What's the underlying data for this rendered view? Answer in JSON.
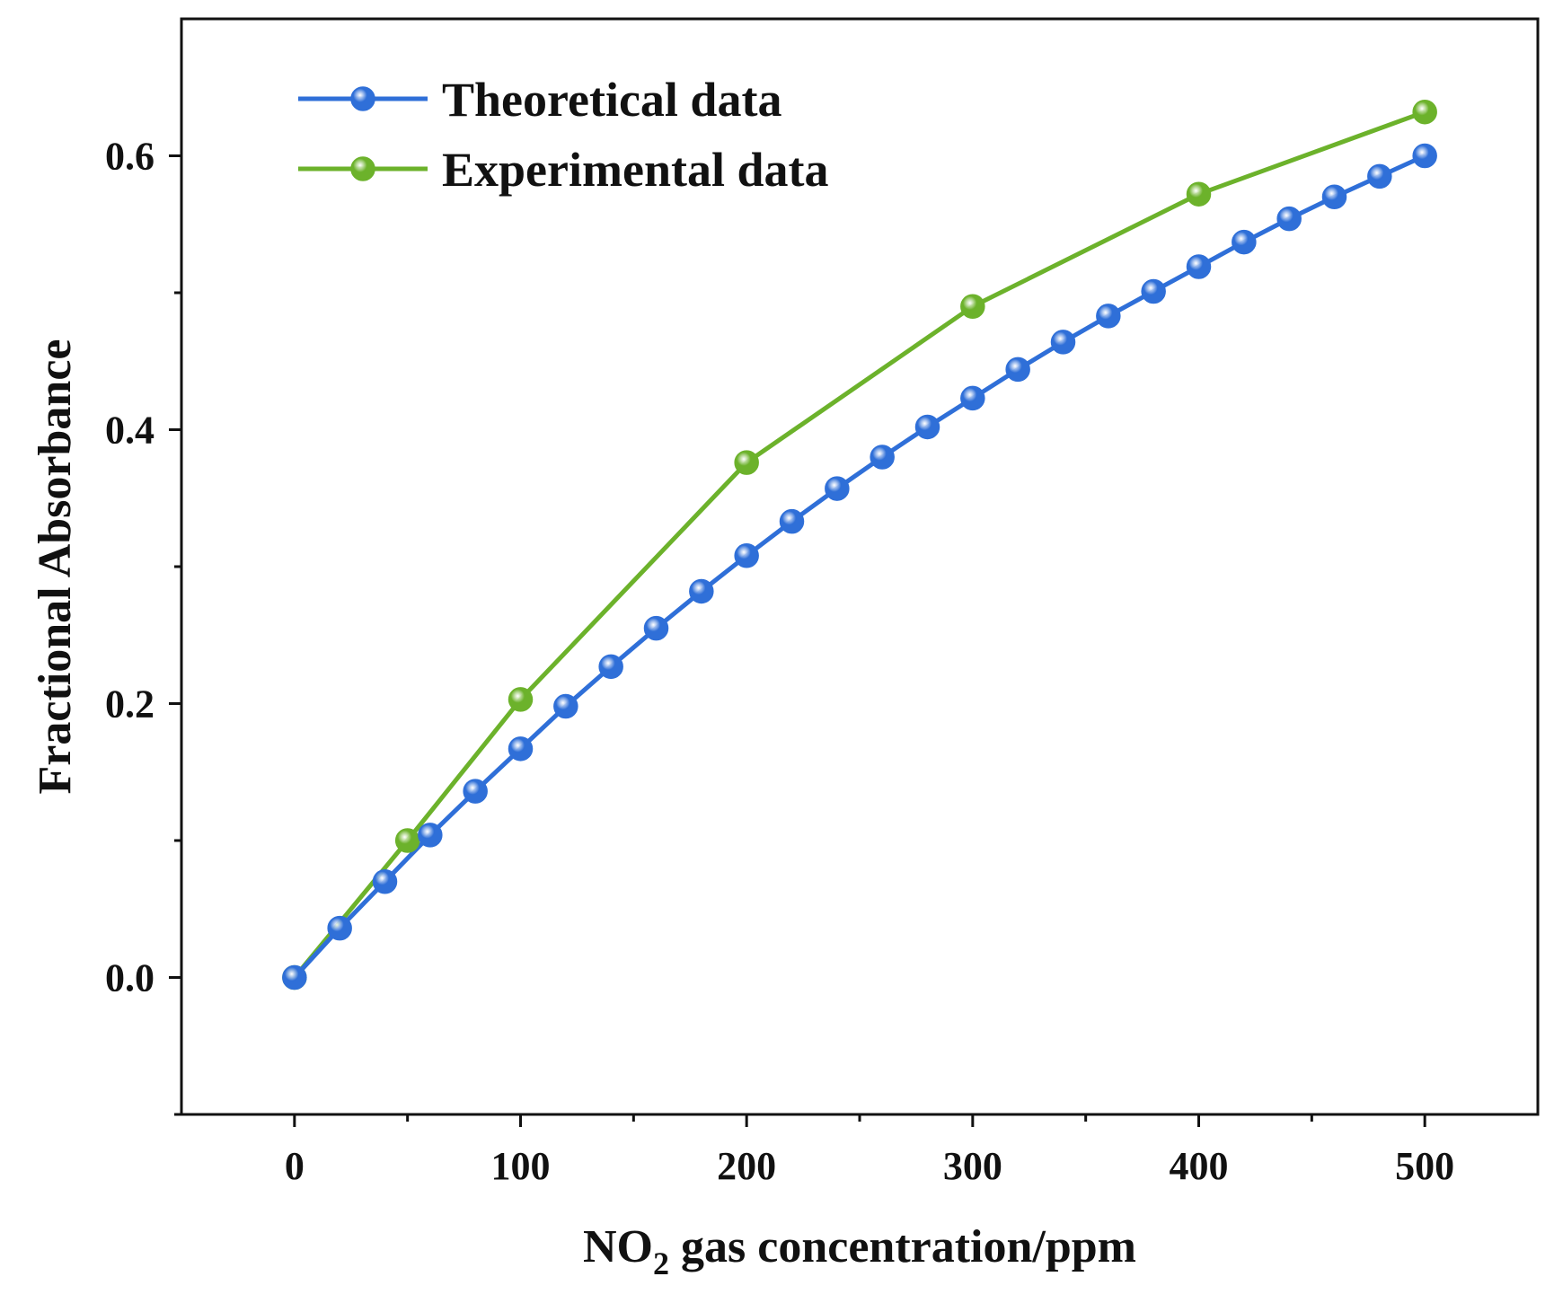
{
  "chart_data": {
    "type": "line",
    "title": "",
    "xlabel": {
      "main": "NO",
      "subscript": "2",
      "rest": " gas concentration/ppm"
    },
    "ylabel": "Fractional Absorbance",
    "xlim": [
      -50,
      550
    ],
    "ylim": [
      -0.1,
      0.7
    ],
    "xticks": [
      0,
      100,
      200,
      300,
      400,
      500
    ],
    "xtick_labels": [
      "0",
      "100",
      "200",
      "300",
      "400",
      "500"
    ],
    "xminor": [
      50,
      150,
      250,
      350,
      450
    ],
    "yticks": [
      0.0,
      0.2,
      0.4,
      0.6
    ],
    "ytick_labels": [
      "0.0",
      "0.2",
      "0.4",
      "0.6"
    ],
    "yminor": [
      -0.1,
      0.1,
      0.3,
      0.5
    ],
    "grid": false,
    "legend": "top-left",
    "series": [
      {
        "name": "Theoretical data",
        "color": "#2f6fd8",
        "x": [
          0,
          20,
          40,
          60,
          80,
          100,
          120,
          140,
          160,
          180,
          200,
          220,
          240,
          260,
          280,
          300,
          320,
          340,
          360,
          380,
          400,
          420,
          440,
          460,
          480,
          500
        ],
        "y": [
          0.0,
          0.036,
          0.07,
          0.104,
          0.136,
          0.167,
          0.198,
          0.227,
          0.255,
          0.282,
          0.308,
          0.333,
          0.357,
          0.38,
          0.402,
          0.423,
          0.444,
          0.464,
          0.483,
          0.501,
          0.519,
          0.537,
          0.554,
          0.57,
          0.585,
          0.6
        ]
      },
      {
        "name": "Experimental data",
        "color": "#6cb22b",
        "x": [
          0,
          50,
          100,
          200,
          300,
          400,
          500
        ],
        "y": [
          0.0,
          0.1,
          0.203,
          0.376,
          0.49,
          0.572,
          0.632
        ]
      }
    ]
  }
}
